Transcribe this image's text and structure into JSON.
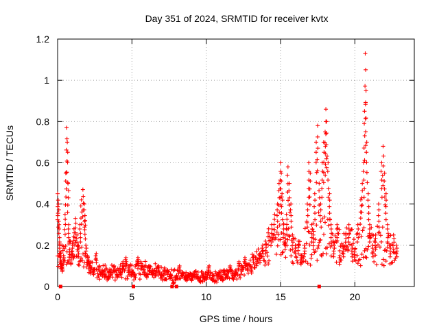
{
  "chart_data": {
    "type": "scatter",
    "title": "Day 351 of 2024, SRMTID for receiver kvtx",
    "xlabel": "GPS time / hours",
    "ylabel": "SRMTID / TECUs",
    "xlim": [
      0,
      24
    ],
    "ylim": [
      0,
      1.2
    ],
    "xticks": [
      0,
      5,
      10,
      15,
      20
    ],
    "yticks": [
      0,
      0.2,
      0.4,
      0.6,
      0.8,
      1,
      1.2
    ],
    "grid": true,
    "marker": "plus",
    "series": [
      {
        "name": "SRMTID",
        "color": "#ff0000",
        "x": [
          0.0,
          0.05,
          0.1,
          0.15,
          0.2,
          0.25,
          0.3,
          0.4,
          0.5,
          0.55,
          0.6,
          0.65,
          0.7,
          0.75,
          0.8,
          0.9,
          1.0,
          1.1,
          1.2,
          1.3,
          1.4,
          1.5,
          1.6,
          1.7,
          1.8,
          1.85,
          1.9,
          2.0,
          2.1,
          2.2,
          2.4,
          2.6,
          2.8,
          3.0,
          3.2,
          3.4,
          3.6,
          3.8,
          4.0,
          4.2,
          4.4,
          4.6,
          4.8,
          5.0,
          5.2,
          5.4,
          5.6,
          5.8,
          6.0,
          6.2,
          6.4,
          6.6,
          6.8,
          7.0,
          7.2,
          7.4,
          7.6,
          7.8,
          8.0,
          8.2,
          8.4,
          8.6,
          8.8,
          9.0,
          9.2,
          9.4,
          9.6,
          9.8,
          10.0,
          10.2,
          10.4,
          10.6,
          10.8,
          11.0,
          11.2,
          11.4,
          11.6,
          11.8,
          12.0,
          12.2,
          12.4,
          12.6,
          12.8,
          13.0,
          13.2,
          13.4,
          13.6,
          13.8,
          14.0,
          14.2,
          14.4,
          14.6,
          14.8,
          14.9,
          15.0,
          15.05,
          15.1,
          15.2,
          15.3,
          15.4,
          15.5,
          15.6,
          15.7,
          15.8,
          16.0,
          16.2,
          16.4,
          16.6,
          16.8,
          16.9,
          17.0,
          17.1,
          17.2,
          17.3,
          17.4,
          17.5,
          17.6,
          17.7,
          17.8,
          17.9,
          18.0,
          18.05,
          18.1,
          18.2,
          18.3,
          18.4,
          18.6,
          18.8,
          19.0,
          19.2,
          19.4,
          19.6,
          19.8,
          20.0,
          20.2,
          20.4,
          20.5,
          20.6,
          20.65,
          20.7,
          20.75,
          20.8,
          20.9,
          21.0,
          21.2,
          21.4,
          21.6,
          21.8,
          21.9,
          22.0,
          22.1,
          22.2,
          22.4,
          22.6,
          22.8
        ],
        "y": [
          0.45,
          0.4,
          0.3,
          0.2,
          0.15,
          0.12,
          0.1,
          0.15,
          0.35,
          0.55,
          0.77,
          0.7,
          0.5,
          0.3,
          0.18,
          0.15,
          0.2,
          0.28,
          0.33,
          0.25,
          0.2,
          0.3,
          0.42,
          0.47,
          0.4,
          0.32,
          0.2,
          0.15,
          0.12,
          0.1,
          0.08,
          0.16,
          0.1,
          0.08,
          0.06,
          0.05,
          0.08,
          0.1,
          0.06,
          0.08,
          0.12,
          0.14,
          0.1,
          0.08,
          0.06,
          0.14,
          0.12,
          0.08,
          0.06,
          0.1,
          0.08,
          0.07,
          0.1,
          0.06,
          0.09,
          0.08,
          0.06,
          0.02,
          0.05,
          0.1,
          0.07,
          0.05,
          0.06,
          0.04,
          0.07,
          0.05,
          0.03,
          0.06,
          0.05,
          0.1,
          0.04,
          0.03,
          0.06,
          0.05,
          0.08,
          0.06,
          0.1,
          0.07,
          0.08,
          0.12,
          0.1,
          0.14,
          0.11,
          0.1,
          0.15,
          0.14,
          0.16,
          0.2,
          0.22,
          0.28,
          0.3,
          0.35,
          0.4,
          0.5,
          0.6,
          0.55,
          0.45,
          0.3,
          0.25,
          0.35,
          0.58,
          0.5,
          0.4,
          0.25,
          0.2,
          0.22,
          0.15,
          0.2,
          0.4,
          0.6,
          0.55,
          0.3,
          0.25,
          0.45,
          0.7,
          0.78,
          0.5,
          0.4,
          0.6,
          0.7,
          0.75,
          0.86,
          0.8,
          0.6,
          0.45,
          0.3,
          0.2,
          0.3,
          0.15,
          0.2,
          0.25,
          0.3,
          0.2,
          0.18,
          0.3,
          0.42,
          0.5,
          0.6,
          0.85,
          1.13,
          0.95,
          0.7,
          0.45,
          0.3,
          0.2,
          0.25,
          0.4,
          0.6,
          0.68,
          0.55,
          0.45,
          0.3,
          0.2,
          0.25,
          0.2
        ],
        "dense_band": {
          "x": [
            0.0,
            1.0,
            2.0,
            3.0,
            4.0,
            5.0,
            6.0,
            7.0,
            8.0,
            9.0,
            10.0,
            11.0,
            12.0,
            13.0,
            14.0,
            15.0,
            16.0,
            17.0,
            18.0,
            19.0,
            20.0,
            21.0,
            22.0,
            22.8
          ],
          "low": [
            0.05,
            0.1,
            0.06,
            0.03,
            0.03,
            0.03,
            0.04,
            0.03,
            0.02,
            0.03,
            0.02,
            0.02,
            0.03,
            0.06,
            0.1,
            0.15,
            0.1,
            0.1,
            0.15,
            0.1,
            0.1,
            0.1,
            0.1,
            0.12
          ],
          "high": [
            0.2,
            0.25,
            0.16,
            0.12,
            0.1,
            0.12,
            0.13,
            0.1,
            0.08,
            0.08,
            0.07,
            0.08,
            0.1,
            0.15,
            0.22,
            0.32,
            0.25,
            0.35,
            0.35,
            0.3,
            0.28,
            0.3,
            0.3,
            0.25
          ]
        }
      }
    ]
  }
}
